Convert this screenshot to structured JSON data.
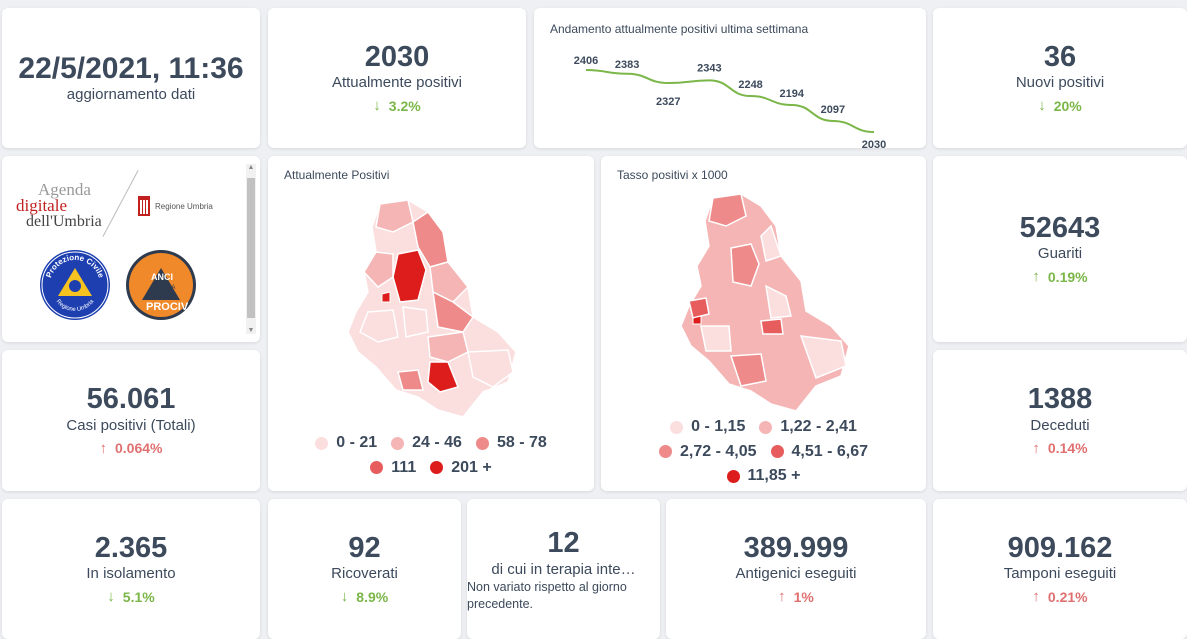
{
  "update": {
    "datetime": "22/5/2021, 11:36",
    "label": "aggiornamento dati"
  },
  "attualmente_positivi": {
    "value": "2030",
    "label": "Attualmente positivi",
    "delta": "3.2%",
    "trend": "down",
    "color": "#7ab648"
  },
  "trend_chart": {
    "title": "Andamento attualmente positivi ultima settimana",
    "points": [
      2406,
      2383,
      2327,
      2343,
      2248,
      2194,
      2097,
      2030
    ],
    "point_labels": [
      "2406",
      "2383",
      "2327",
      "2343",
      "2248",
      "2194",
      "2097",
      "2030"
    ],
    "line_color": "#7ab648"
  },
  "nuovi_positivi": {
    "value": "36",
    "label": "Nuovi positivi",
    "delta": "20%",
    "trend": "down",
    "color": "#7ab648"
  },
  "logos": {
    "agenda_line1": "Agenda",
    "agenda_line2": "digitale",
    "agenda_line3": "dell'Umbria",
    "regione": "Regione Umbria",
    "protezione_top": "Protezione Civile",
    "protezione_bottom": "Regione Umbria",
    "anci_line1": "ANCI",
    "anci_line2": "UMBRIA",
    "anci_line3": "PROCIV"
  },
  "map_positivi": {
    "title": "Attualmente Positivi",
    "legend": [
      {
        "label": "0 - 21",
        "color": "#fbdede"
      },
      {
        "label": "24 - 46",
        "color": "#f5b5b5"
      },
      {
        "label": "58 - 78",
        "color": "#ee8a8a"
      },
      {
        "label": "111",
        "color": "#e75c5c"
      },
      {
        "label": "201 +",
        "color": "#dd1c1c"
      }
    ]
  },
  "map_tasso": {
    "title": "Tasso positivi x 1000",
    "legend": [
      {
        "label": "0 - 1,15",
        "color": "#fbdede"
      },
      {
        "label": "1,22 - 2,41",
        "color": "#f5b5b5"
      },
      {
        "label": "2,72 - 4,05",
        "color": "#ee8a8a"
      },
      {
        "label": "4,51 - 6,67",
        "color": "#e75c5c"
      },
      {
        "label": "11,85 +",
        "color": "#dd1c1c"
      }
    ]
  },
  "guariti": {
    "value": "52643",
    "label": "Guariti",
    "delta": "0.19%",
    "trend": "up",
    "color": "#7ab648"
  },
  "casi_totali": {
    "value": "56.061",
    "label": "Casi positivi (Totali)",
    "delta": "0.064%",
    "trend": "up",
    "color": "#e07070"
  },
  "deceduti": {
    "value": "1388",
    "label": "Deceduti",
    "delta": "0.14%",
    "trend": "up",
    "color": "#e07070"
  },
  "isolamento": {
    "value": "2.365",
    "label": "In isolamento",
    "delta": "5.1%",
    "trend": "down",
    "color": "#7ab648"
  },
  "ricoverati": {
    "value": "92",
    "label": "Ricoverati",
    "delta": "8.9%",
    "trend": "down",
    "color": "#7ab648"
  },
  "terapia": {
    "value": "12",
    "label": "di cui in terapia inte…",
    "note": "Non variato rispetto al giorno precedente."
  },
  "antigenici": {
    "value": "389.999",
    "label": "Antigenici eseguiti",
    "delta": "1%",
    "trend": "up",
    "color": "#e07070"
  },
  "tamponi": {
    "value": "909.162",
    "label": "Tamponi eseguiti",
    "delta": "0.21%",
    "trend": "up",
    "color": "#e07070"
  }
}
